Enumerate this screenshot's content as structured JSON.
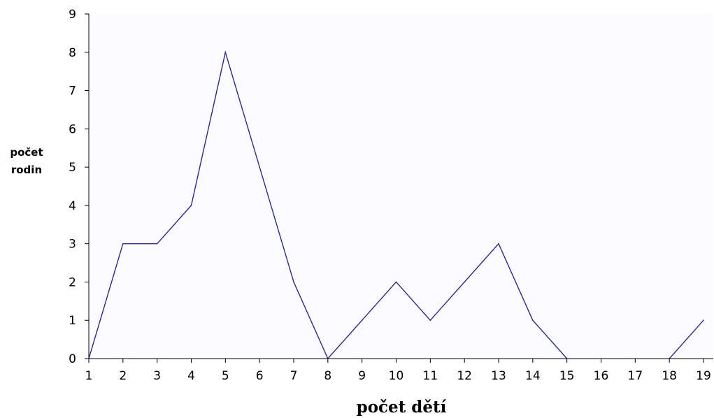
{
  "chart_data": {
    "type": "line",
    "title": "",
    "xlabel": "počet dětí",
    "ylabel_lines": [
      "počet",
      "rodin"
    ],
    "categories": [
      "1",
      "2",
      "3",
      "4",
      "5",
      "6",
      "7",
      "8",
      "9",
      "10",
      "11",
      "12",
      "13",
      "14",
      "15",
      "16",
      "17",
      "18",
      "19"
    ],
    "series": [
      {
        "values": [
          0,
          3,
          3,
          4,
          8,
          5,
          2,
          0,
          1,
          2,
          1,
          2,
          3,
          1,
          0,
          null,
          null,
          0,
          1
        ]
      }
    ],
    "ylim": [
      0,
      9
    ],
    "yticks": [
      0,
      1,
      2,
      3,
      4,
      5,
      6,
      7,
      8,
      9
    ],
    "grid": false,
    "legend": "none",
    "colors": {
      "plot_background": "#fcfcfe",
      "line": "#2b2b8a",
      "axis": "#000000"
    }
  }
}
